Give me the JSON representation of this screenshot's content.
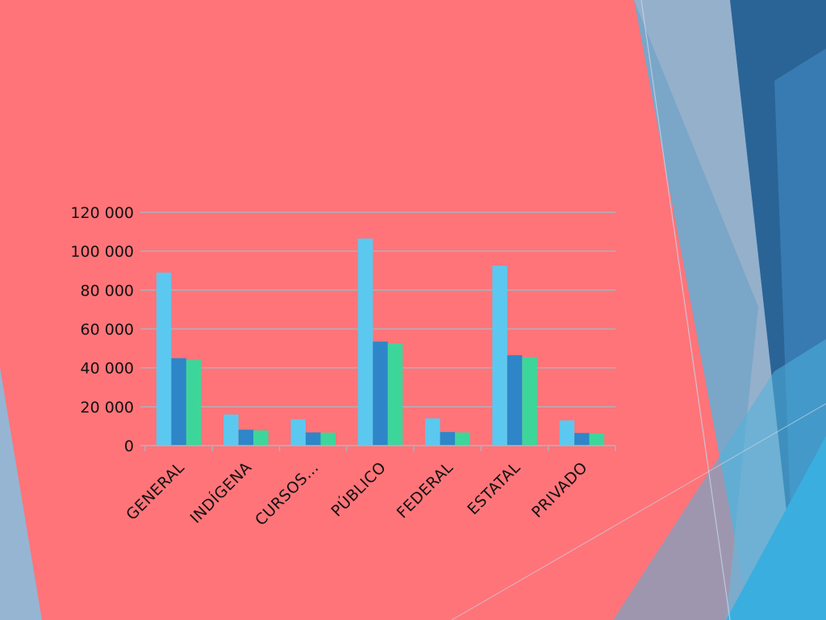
{
  "theme": {
    "background": "#ff7479",
    "series_colors": [
      "#5bc8f0",
      "#2e86c8",
      "#3dd69a"
    ],
    "gridline": "#b0b0b8"
  },
  "chart_data": {
    "type": "bar",
    "title": "",
    "xlabel": "",
    "ylabel": "",
    "categories": [
      "GENERAL",
      "INDÍGENA",
      "CURSOS…",
      "PÚBLICO",
      "FEDERAL",
      "ESTATAL",
      "PRIVADO"
    ],
    "series": [
      {
        "values": [
          89000,
          16000,
          13500,
          106500,
          14000,
          92500,
          13000
        ]
      },
      {
        "values": [
          45000,
          8200,
          6800,
          53500,
          7000,
          46500,
          6500
        ]
      },
      {
        "values": [
          44000,
          7800,
          6700,
          52500,
          6800,
          45500,
          6300
        ]
      }
    ],
    "ylim": [
      0,
      120000
    ],
    "yticks": [
      "0",
      "20 000",
      "40 000",
      "60 000",
      "80 000",
      "100 000",
      "120 000"
    ],
    "ytick_values": [
      0,
      20000,
      40000,
      60000,
      80000,
      100000,
      120000
    ],
    "grid": true,
    "legend": "none"
  }
}
